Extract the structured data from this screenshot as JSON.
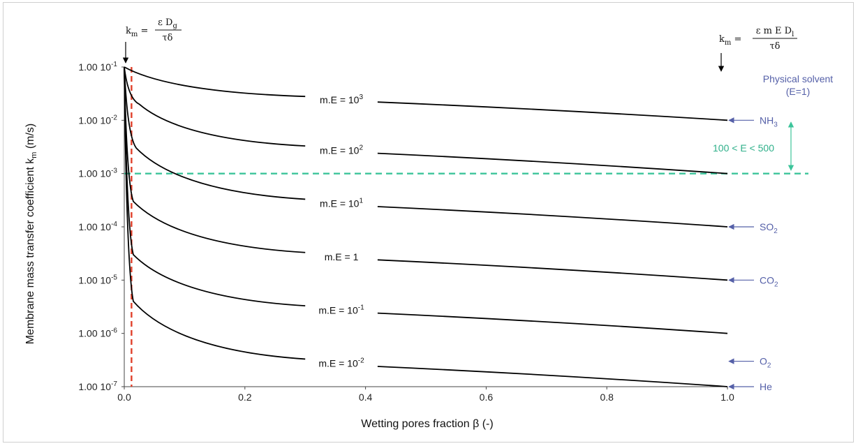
{
  "chart_data": {
    "type": "line",
    "xlabel": "Wetting pores fraction β (-)",
    "ylabel_main": "Membrane mass transfer coefficient k",
    "ylabel_sub": "m",
    "ylabel_unit": " (m/s)",
    "yscale": "log",
    "xlim": [
      0,
      1
    ],
    "ylim": [
      1e-07,
      0.1
    ],
    "x_ticks": [
      "0.0",
      "0.2",
      "0.4",
      "0.6",
      "0.8",
      "1.0"
    ],
    "y_ticks": [
      {
        "base": "1.00 10",
        "exp": "-1"
      },
      {
        "base": "1.00 10",
        "exp": "-2"
      },
      {
        "base": "1.00 10",
        "exp": "-3"
      },
      {
        "base": "1.00 10",
        "exp": "-4"
      },
      {
        "base": "1.00 10",
        "exp": "-5"
      },
      {
        "base": "1.00 10",
        "exp": "-6"
      },
      {
        "base": "1.00 10",
        "exp": "-7"
      }
    ],
    "series": [
      {
        "label_base": "m.E = 10",
        "label_exp": "3",
        "x": [
          0,
          0.3,
          0.42,
          1.0
        ],
        "y": [
          0.1,
          0.028,
          0.022,
          0.01
        ]
      },
      {
        "label_base": "m.E = 10",
        "label_exp": "2",
        "x": [
          0,
          0.025,
          0.3,
          0.42,
          1.0
        ],
        "y": [
          0.1,
          0.02,
          0.0033,
          0.0024,
          0.001
        ]
      },
      {
        "label_base": "m.E = 10",
        "label_exp": "1",
        "x": [
          0,
          0.02,
          0.3,
          0.42,
          1.0
        ],
        "y": [
          0.1,
          0.003,
          0.00033,
          0.00024,
          0.0001
        ]
      },
      {
        "label_base": "m.E = 1",
        "label_exp": "",
        "x": [
          0,
          0.015,
          0.3,
          0.42,
          1.0
        ],
        "y": [
          0.1,
          0.0003,
          3.3e-05,
          2.4e-05,
          1e-05
        ]
      },
      {
        "label_base": "m.E = 10",
        "label_exp": "-1",
        "x": [
          0,
          0.015,
          0.3,
          0.42,
          1.0
        ],
        "y": [
          0.1,
          3e-05,
          3.3e-06,
          2.4e-06,
          1e-06
        ]
      },
      {
        "label_base": "m.E = 10",
        "label_exp": "-2",
        "x": [
          0,
          0.015,
          0.3,
          0.42,
          1.0
        ],
        "y": [
          0.1,
          4e-06,
          3.3e-07,
          2.4e-07,
          1e-07
        ]
      }
    ],
    "reference_lines": [
      {
        "orientation": "horizontal",
        "y": 0.001,
        "color": "#3cc49a",
        "style": "dashed"
      },
      {
        "orientation": "vertical",
        "x": 0.012,
        "color": "#e0402a",
        "style": "dashed"
      }
    ],
    "annotations": {
      "formula_left": {
        "lhs": "k",
        "lhs_sub": "m",
        "num": "ε D",
        "num_sub": "g",
        "den": "τδ"
      },
      "formula_right": {
        "lhs": "k",
        "lhs_sub": "m",
        "num": "ε m E D",
        "num_sub": "l",
        "den": "τδ"
      },
      "physical_solvent": "Physical solvent",
      "physical_solvent_sub": "(E=1)",
      "band_label": "100 < E < 500",
      "gases": [
        {
          "name": "NH",
          "sub": "3",
          "y": 0.01
        },
        {
          "name": "SO",
          "sub": "2",
          "y": 0.0001
        },
        {
          "name": "CO",
          "sub": "2",
          "y": 1e-05
        },
        {
          "name": "O",
          "sub": "2",
          "y": 3e-07
        },
        {
          "name": "He",
          "sub": "",
          "y": 1e-07
        }
      ]
    },
    "colors": {
      "series": "#000000",
      "gas_arrow": "#5560a8",
      "band": "#3cc49a",
      "vline": "#e0402a"
    }
  }
}
